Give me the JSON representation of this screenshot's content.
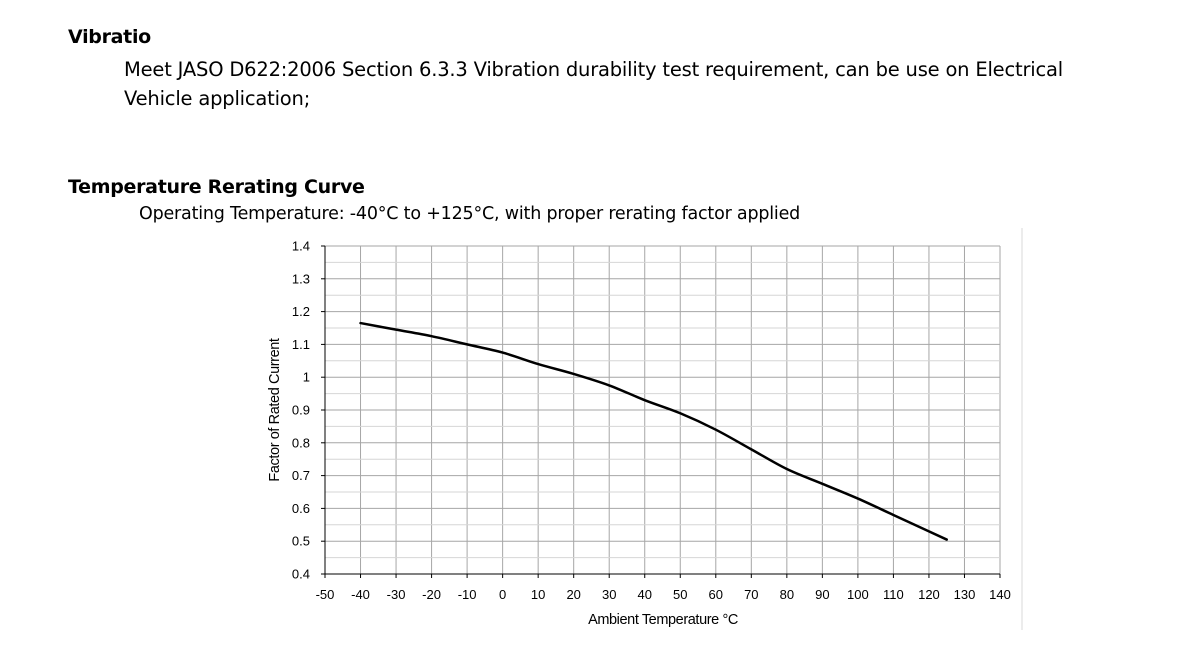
{
  "sections": {
    "vibration_heading": "Vibratio",
    "vibration_text": "Meet JASO D622:2006 Section 6.3.3 Vibration durability test requirement, can be use on Electrical Vehicle application;",
    "rerating_heading": "Temperature Rerating Curve",
    "rerating_subtitle": "Operating Temperature:  -40°C to +125°C, with proper rerating factor applied"
  },
  "chart_data": {
    "type": "line",
    "title": "",
    "xlabel": "Ambient Temperature °C",
    "ylabel": "Factor of Rated Current",
    "xlim": [
      -50,
      140
    ],
    "ylim": [
      0.4,
      1.4
    ],
    "x_ticks": [
      "-50",
      "-40",
      "-30",
      "-20",
      "-10",
      "0",
      "10",
      "20",
      "30",
      "40",
      "50",
      "60",
      "70",
      "80",
      "90",
      "100",
      "110",
      "120",
      "130",
      "140"
    ],
    "y_ticks": [
      "0.4",
      "0.5",
      "0.6",
      "0.7",
      "0.8",
      "0.9",
      "1",
      "1.1",
      "1.2",
      "1.3",
      "1.4"
    ],
    "grid": true,
    "series": [
      {
        "color": "#000000",
        "x": [
          -40,
          -30,
          -20,
          -10,
          0,
          10,
          20,
          30,
          40,
          50,
          60,
          70,
          80,
          90,
          100,
          110,
          120,
          125
        ],
        "y": [
          1.165,
          1.145,
          1.125,
          1.1,
          1.075,
          1.04,
          1.01,
          0.975,
          0.93,
          0.89,
          0.84,
          0.78,
          0.72,
          0.675,
          0.63,
          0.58,
          0.53,
          0.505
        ]
      }
    ]
  }
}
